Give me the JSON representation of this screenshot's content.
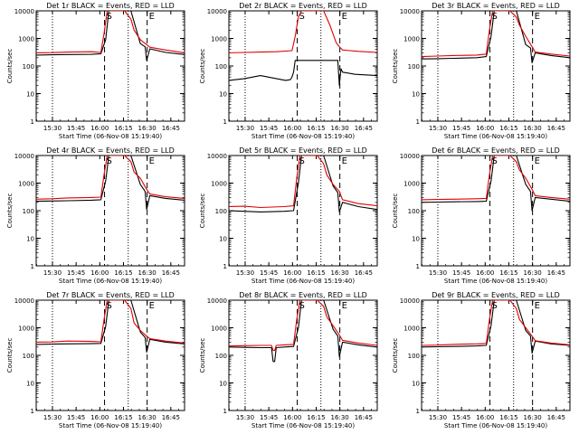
{
  "figure": {
    "colors": {
      "events": "#000000",
      "lld": "#e00000",
      "axes": "#000000",
      "background": "#ffffff"
    },
    "y_ticks": [
      1,
      10,
      100,
      1000,
      10000
    ],
    "y_tick_labels": [
      "1",
      "10",
      "100",
      "1000",
      "10000"
    ],
    "x_ticks": [
      "15:30",
      "15:45",
      "16:00",
      "16:15",
      "16:30",
      "16:45"
    ],
    "ylabel": "Counts/sec",
    "xlabel": "Start Time (06-Nov-08 15:19:40)",
    "marker_S": "S",
    "marker_E": "E"
  },
  "chart_data": [
    {
      "type": "line",
      "title": "Det 1r BLACK = Events, RED = LLD",
      "xlabel": "Start Time (06-Nov-08 15:19:40)",
      "ylabel": "Counts/sec",
      "x_unit": "minutes after 15:19:40",
      "xlim": [
        0,
        94
      ],
      "ylim": [
        1,
        10000
      ],
      "yscale": "log",
      "vlines_dotted": [
        10.3,
        58.3
      ],
      "vlines_dashed": [
        43.3,
        70.3
      ],
      "series": [
        {
          "name": "Events",
          "color": "#000000",
          "x": [
            0,
            10,
            20,
            35,
            41,
            44,
            46,
            48,
            56,
            60,
            66,
            69,
            70,
            72,
            82,
            94
          ],
          "y": [
            250,
            255,
            260,
            265,
            280,
            900,
            10000,
            10000,
            10000,
            10000,
            650,
            500,
            160,
            420,
            310,
            260
          ]
        },
        {
          "name": "LLD",
          "color": "#e00000",
          "x": [
            0,
            10,
            20,
            35,
            41,
            43,
            45,
            48,
            52,
            56,
            60,
            62,
            66,
            70,
            72,
            82,
            94
          ],
          "y": [
            300,
            305,
            320,
            330,
            310,
            1500,
            10000,
            10000,
            10000,
            10000,
            5000,
            2000,
            900,
            600,
            480,
            380,
            300
          ]
        }
      ]
    },
    {
      "type": "line",
      "title": "Det 2r BLACK = Events, RED = LLD",
      "xlabel": "Start Time (06-Nov-08 15:19:40)",
      "ylabel": "Counts/sec",
      "x_unit": "minutes after 15:19:40",
      "xlim": [
        0,
        94
      ],
      "ylim": [
        1,
        10000
      ],
      "yscale": "log",
      "vlines_dotted": [
        10.3,
        58.3
      ],
      "vlines_dashed": [
        43.3,
        70.3
      ],
      "series": [
        {
          "name": "Events",
          "color": "#000000",
          "x": [
            0,
            10,
            20,
            30,
            36,
            39,
            40,
            41,
            42,
            69,
            70,
            71,
            72,
            80,
            94
          ],
          "y": [
            30,
            35,
            45,
            35,
            30,
            32,
            40,
            60,
            160,
            160,
            20,
            80,
            60,
            50,
            45
          ]
        },
        {
          "name": "LLD",
          "color": "#e00000",
          "x": [
            0,
            10,
            20,
            30,
            40,
            42,
            44,
            46,
            48,
            56,
            60,
            64,
            68,
            70,
            72,
            82,
            94
          ],
          "y": [
            300,
            310,
            320,
            330,
            360,
            1200,
            6000,
            10000,
            10000,
            10000,
            10000,
            3000,
            700,
            500,
            380,
            340,
            310
          ]
        }
      ]
    },
    {
      "type": "line",
      "title": "Det 3r BLACK = Events, RED = LLD",
      "xlabel": "Start Time (06-Nov-08 15:19:40)",
      "ylabel": "Counts/sec",
      "x_unit": "minutes after 15:19:40",
      "xlim": [
        0,
        94
      ],
      "ylim": [
        1,
        10000
      ],
      "yscale": "log",
      "vlines_dotted": [
        10.3,
        58.3
      ],
      "vlines_dashed": [
        43.3,
        70.3
      ],
      "series": [
        {
          "name": "Events",
          "color": "#000000",
          "x": [
            0,
            10,
            20,
            35,
            41,
            44,
            46,
            48,
            56,
            60,
            66,
            69,
            70,
            72,
            82,
            94
          ],
          "y": [
            180,
            185,
            190,
            200,
            220,
            1200,
            10000,
            10000,
            10000,
            10000,
            600,
            450,
            130,
            300,
            240,
            200
          ]
        },
        {
          "name": "LLD",
          "color": "#e00000",
          "x": [
            0,
            10,
            20,
            35,
            41,
            43,
            45,
            48,
            52,
            56,
            60,
            62,
            66,
            70,
            72,
            82,
            94
          ],
          "y": [
            220,
            230,
            240,
            250,
            270,
            2000,
            10000,
            10000,
            10000,
            10000,
            6000,
            3000,
            1200,
            500,
            320,
            270,
            230
          ]
        }
      ]
    },
    {
      "type": "line",
      "title": "Det 4r BLACK = Events, RED = LLD",
      "xlabel": "Start Time (06-Nov-08 15:19:40)",
      "ylabel": "Counts/sec",
      "x_unit": "minutes after 15:19:40",
      "xlim": [
        0,
        94
      ],
      "ylim": [
        1,
        10000
      ],
      "yscale": "log",
      "vlines_dotted": [
        10.3,
        58.3
      ],
      "vlines_dashed": [
        43.3,
        70.3
      ],
      "series": [
        {
          "name": "Events",
          "color": "#000000",
          "x": [
            0,
            10,
            20,
            35,
            41,
            44,
            46,
            48,
            56,
            60,
            66,
            69,
            70,
            72,
            82,
            94
          ],
          "y": [
            220,
            225,
            230,
            240,
            250,
            1200,
            10000,
            10000,
            10000,
            10000,
            900,
            500,
            110,
            350,
            280,
            240
          ]
        },
        {
          "name": "LLD",
          "color": "#e00000",
          "x": [
            0,
            10,
            20,
            35,
            41,
            43,
            45,
            48,
            52,
            56,
            60,
            62,
            66,
            70,
            72,
            82,
            94
          ],
          "y": [
            260,
            270,
            290,
            300,
            310,
            2000,
            10000,
            10000,
            10000,
            10000,
            6000,
            2500,
            1500,
            600,
            400,
            320,
            280
          ]
        }
      ]
    },
    {
      "type": "line",
      "title": "Det 5r BLACK = Events, RED = LLD",
      "xlabel": "Start Time (06-Nov-08 15:19:40)",
      "ylabel": "Counts/sec",
      "x_unit": "minutes after 15:19:40",
      "xlim": [
        0,
        94
      ],
      "ylim": [
        1,
        10000
      ],
      "yscale": "log",
      "vlines_dotted": [
        10.3,
        58.3
      ],
      "vlines_dashed": [
        43.3,
        70.3
      ],
      "series": [
        {
          "name": "Events",
          "color": "#000000",
          "x": [
            0,
            10,
            20,
            35,
            41,
            44,
            46,
            48,
            56,
            60,
            66,
            69,
            70,
            72,
            82,
            94
          ],
          "y": [
            100,
            95,
            90,
            95,
            100,
            1000,
            10000,
            10000,
            10000,
            10000,
            800,
            450,
            90,
            200,
            140,
            110
          ]
        },
        {
          "name": "LLD",
          "color": "#e00000",
          "x": [
            0,
            10,
            20,
            35,
            41,
            43,
            45,
            48,
            52,
            56,
            60,
            62,
            66,
            70,
            72,
            82,
            94
          ],
          "y": [
            140,
            145,
            130,
            140,
            150,
            1500,
            10000,
            10000,
            10000,
            10000,
            5000,
            2000,
            900,
            500,
            250,
            180,
            150
          ]
        }
      ]
    },
    {
      "type": "line",
      "title": "Det 6r BLACK = Events, RED = LLD",
      "xlabel": "Start Time (06-Nov-08 15:19:40)",
      "ylabel": "Counts/sec",
      "x_unit": "minutes after 15:19:40",
      "xlim": [
        0,
        94
      ],
      "ylim": [
        1,
        10000
      ],
      "yscale": "log",
      "vlines_dotted": [
        10.3,
        58.3
      ],
      "vlines_dashed": [
        43.3,
        70.3
      ],
      "series": [
        {
          "name": "Events",
          "color": "#000000",
          "x": [
            0,
            10,
            20,
            35,
            41,
            44,
            46,
            48,
            56,
            60,
            66,
            69,
            70,
            72,
            82,
            94
          ],
          "y": [
            200,
            205,
            210,
            215,
            220,
            1200,
            10000,
            10000,
            10000,
            10000,
            900,
            500,
            100,
            300,
            260,
            220
          ]
        },
        {
          "name": "LLD",
          "color": "#e00000",
          "x": [
            0,
            10,
            20,
            35,
            41,
            43,
            45,
            48,
            52,
            56,
            60,
            62,
            66,
            70,
            72,
            82,
            94
          ],
          "y": [
            250,
            255,
            260,
            270,
            280,
            2000,
            10000,
            10000,
            10000,
            10000,
            6000,
            3000,
            1500,
            600,
            350,
            300,
            260
          ]
        }
      ]
    },
    {
      "type": "line",
      "title": "Det 7r BLACK = Events, RED = LLD",
      "xlabel": "Start Time (06-Nov-08 15:19:40)",
      "ylabel": "Counts/sec",
      "x_unit": "minutes after 15:19:40",
      "xlim": [
        0,
        94
      ],
      "ylim": [
        1,
        10000
      ],
      "yscale": "log",
      "vlines_dotted": [
        10.3,
        58.3
      ],
      "vlines_dashed": [
        43.3,
        70.3
      ],
      "series": [
        {
          "name": "Events",
          "color": "#000000",
          "x": [
            0,
            10,
            20,
            35,
            41,
            44,
            46,
            48,
            56,
            60,
            66,
            69,
            70,
            72,
            82,
            94
          ],
          "y": [
            250,
            255,
            260,
            265,
            270,
            1100,
            10000,
            10000,
            10000,
            10000,
            700,
            450,
            130,
            380,
            300,
            260
          ]
        },
        {
          "name": "LLD",
          "color": "#e00000",
          "x": [
            0,
            10,
            20,
            35,
            41,
            43,
            45,
            48,
            52,
            56,
            60,
            62,
            66,
            70,
            72,
            82,
            94
          ],
          "y": [
            300,
            305,
            330,
            320,
            310,
            2000,
            10000,
            10000,
            10000,
            10000,
            5000,
            1500,
            800,
            500,
            400,
            330,
            280
          ]
        }
      ]
    },
    {
      "type": "line",
      "title": "Det 8r BLACK = Events, RED = LLD",
      "xlabel": "Start Time (06-Nov-08 15:19:40)",
      "ylabel": "Counts/sec",
      "x_unit": "minutes after 15:19:40",
      "xlim": [
        0,
        94
      ],
      "ylim": [
        1,
        10000
      ],
      "yscale": "log",
      "vlines_dotted": [
        10.3,
        58.3
      ],
      "vlines_dashed": [
        43.3,
        70.3
      ],
      "series": [
        {
          "name": "Events",
          "color": "#000000",
          "x": [
            0,
            10,
            20,
            27,
            28,
            29,
            30,
            35,
            41,
            44,
            46,
            48,
            56,
            60,
            66,
            69,
            70,
            72,
            82,
            94
          ],
          "y": [
            200,
            195,
            190,
            190,
            60,
            60,
            190,
            200,
            210,
            1000,
            10000,
            10000,
            10000,
            10000,
            900,
            500,
            90,
            300,
            240,
            200
          ]
        },
        {
          "name": "LLD",
          "color": "#e00000",
          "x": [
            0,
            10,
            20,
            27,
            28,
            29,
            30,
            35,
            41,
            43,
            45,
            48,
            52,
            56,
            60,
            62,
            66,
            70,
            72,
            82,
            94
          ],
          "y": [
            220,
            225,
            230,
            230,
            150,
            150,
            230,
            240,
            250,
            2000,
            10000,
            10000,
            10000,
            10000,
            6000,
            2500,
            1200,
            550,
            350,
            280,
            230
          ]
        }
      ]
    },
    {
      "type": "line",
      "title": "Det 9r BLACK = Events, RED = LLD",
      "xlabel": "Start Time (06-Nov-08 15:19:40)",
      "ylabel": "Counts/sec",
      "x_unit": "minutes after 15:19:40",
      "xlim": [
        0,
        94
      ],
      "ylim": [
        1,
        10000
      ],
      "yscale": "log",
      "vlines_dotted": [
        10.3,
        58.3
      ],
      "vlines_dashed": [
        43.3,
        70.3
      ],
      "series": [
        {
          "name": "Events",
          "color": "#000000",
          "x": [
            0,
            10,
            20,
            35,
            41,
            44,
            46,
            48,
            56,
            60,
            66,
            69,
            70,
            72,
            82,
            94
          ],
          "y": [
            200,
            205,
            210,
            220,
            230,
            1200,
            10000,
            10000,
            10000,
            10000,
            800,
            500,
            120,
            330,
            260,
            230
          ]
        },
        {
          "name": "LLD",
          "color": "#e00000",
          "x": [
            0,
            10,
            20,
            35,
            41,
            43,
            45,
            48,
            52,
            56,
            60,
            62,
            66,
            70,
            72,
            82,
            94
          ],
          "y": [
            230,
            235,
            250,
            260,
            270,
            2000,
            10000,
            10000,
            10000,
            10000,
            5000,
            2000,
            1000,
            500,
            340,
            280,
            240
          ]
        }
      ]
    }
  ]
}
